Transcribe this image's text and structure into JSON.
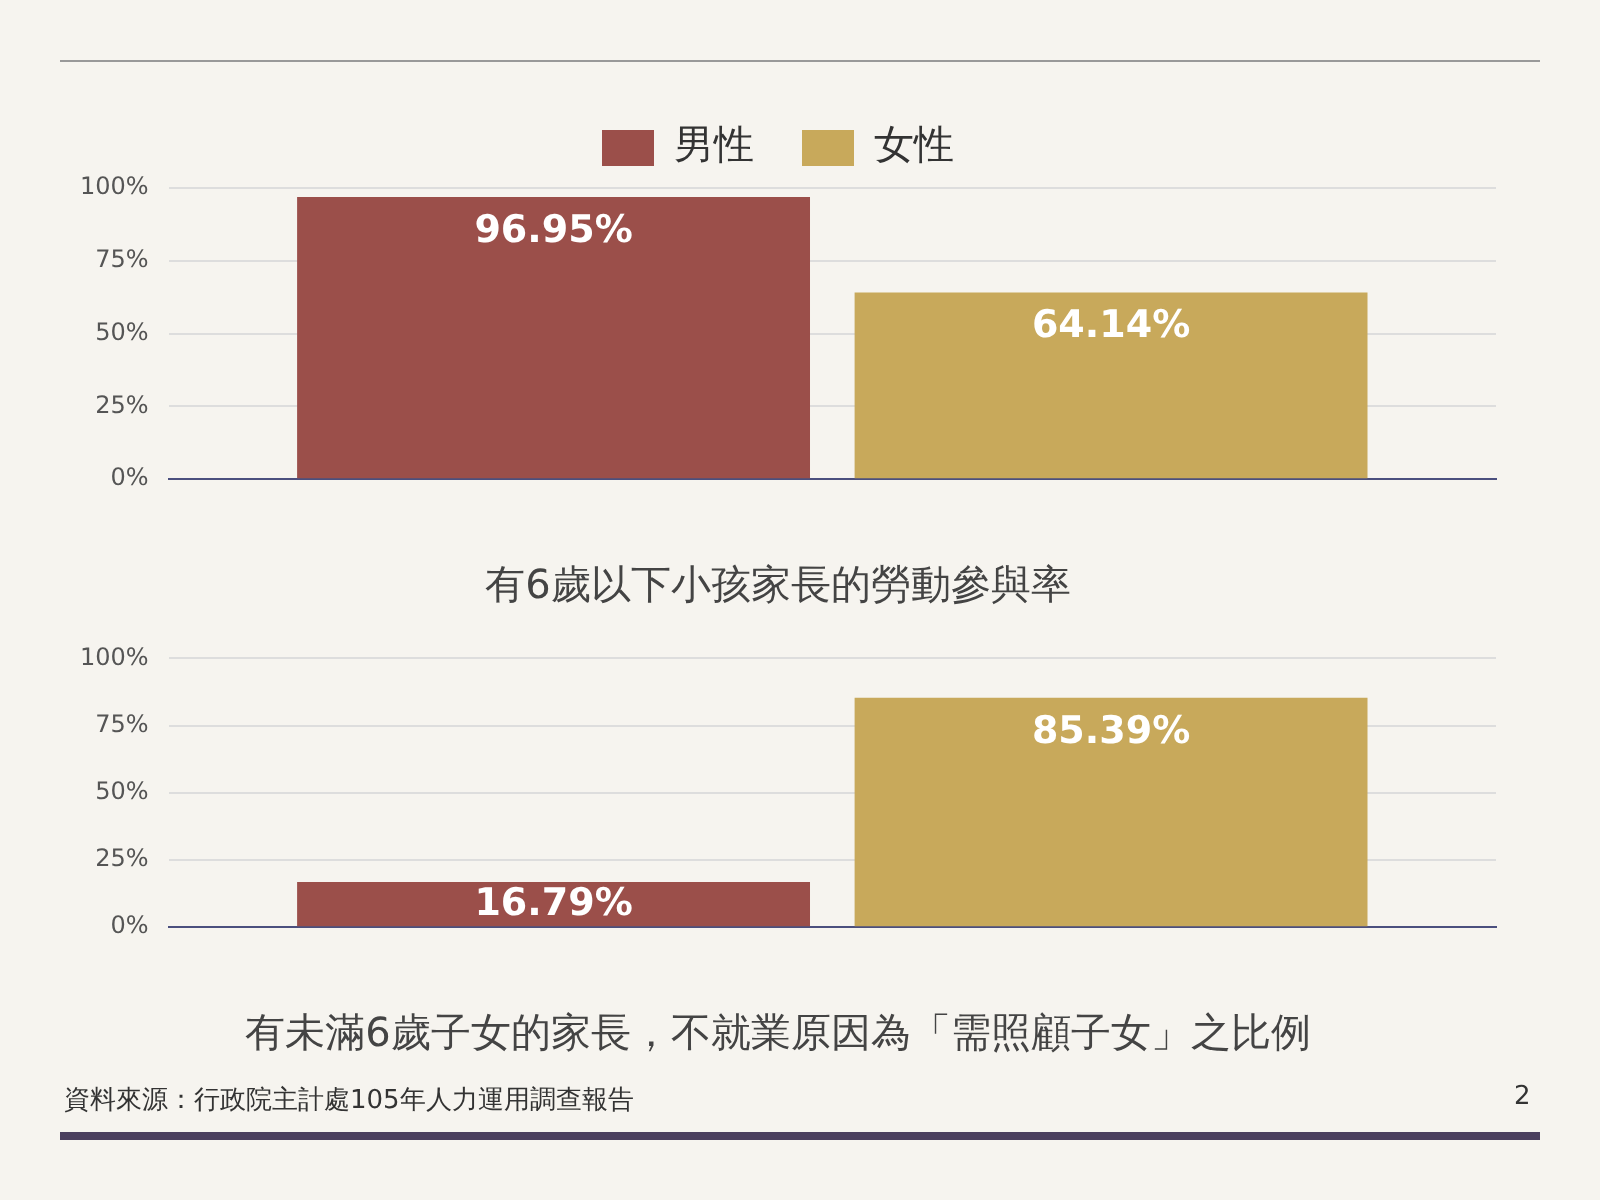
{
  "chart_data": [
    {
      "type": "bar",
      "title": "有6歲以下小孩家長的勞動參與率",
      "categories": [
        null
      ],
      "series": [
        {
          "name": "男性",
          "color": "#9b4f4a",
          "values": [
            96.95
          ],
          "value_labels": [
            "96.95%"
          ]
        },
        {
          "name": "女性",
          "color": "#c8a95b",
          "values": [
            64.14
          ],
          "value_labels": [
            "64.14%"
          ]
        }
      ],
      "ylim": [
        0,
        100
      ],
      "yticks": [
        {
          "value": 0,
          "label": "0%"
        },
        {
          "value": 25,
          "label": "25%"
        },
        {
          "value": 50,
          "label": "50%"
        },
        {
          "value": 75,
          "label": "75%"
        },
        {
          "value": 100,
          "label": "100%"
        }
      ],
      "grid": "y",
      "legend": "top"
    },
    {
      "type": "bar",
      "title": "有未滿6歲子女的家長，不就業原因為「需照顧子女」之比例",
      "categories": [
        null
      ],
      "series": [
        {
          "color": "#9b4f4a",
          "values": [
            16.79
          ],
          "value_labels": [
            "16.79%"
          ]
        },
        {
          "color": "#c8a95b",
          "values": [
            85.39
          ],
          "value_labels": [
            "85.39%"
          ]
        }
      ],
      "ylim": [
        0,
        100
      ],
      "yticks": [
        {
          "value": 0,
          "label": "0%"
        },
        {
          "value": 25,
          "label": "25%"
        },
        {
          "value": 50,
          "label": "50%"
        },
        {
          "value": 75,
          "label": "75%"
        },
        {
          "value": 100,
          "label": "100%"
        }
      ],
      "grid": "y",
      "legend": false,
      "annotations": [
        "資料來源：行政院主計處105年人力運用調查報告",
        "2"
      ]
    }
  ]
}
